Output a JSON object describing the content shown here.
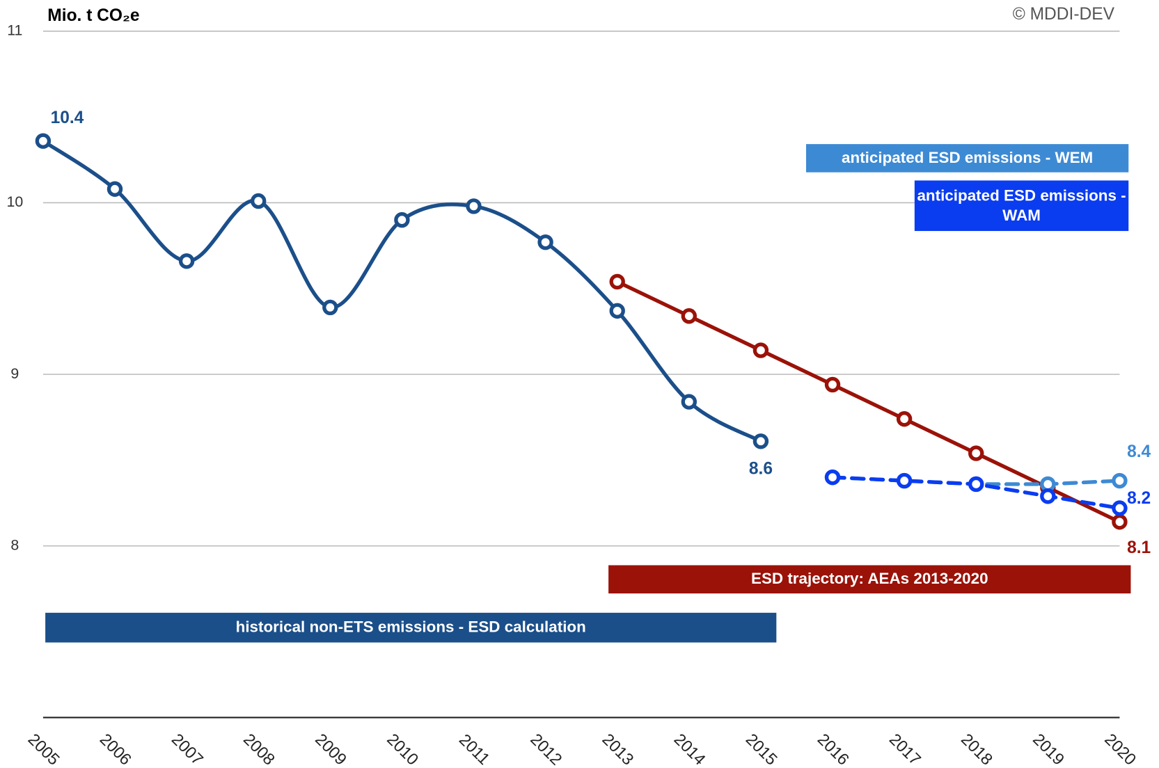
{
  "chart_data": {
    "type": "line",
    "y_label": "Mio. t CO₂e",
    "source": "© MDDI-DEV",
    "categories": [
      "2005",
      "2006",
      "2007",
      "2008",
      "2009",
      "2010",
      "2011",
      "2012",
      "2013",
      "2014",
      "2015",
      "2016",
      "2017",
      "2018",
      "2019",
      "2020"
    ],
    "ylim": [
      7,
      11
    ],
    "yticks": [
      8,
      9,
      10,
      11
    ],
    "grid": true,
    "series": [
      {
        "name": "historical non-ETS emissions - ESD calculation",
        "color": "#1b4f8a",
        "smooth": true,
        "dashed": false,
        "values": [
          10.36,
          10.08,
          9.66,
          10.01,
          9.39,
          9.9,
          9.98,
          9.77,
          9.37,
          8.84,
          8.61,
          null,
          null,
          null,
          null,
          null
        ],
        "value_labels": [
          "10.4",
          null,
          null,
          null,
          null,
          null,
          null,
          null,
          null,
          null,
          "8.6",
          null,
          null,
          null,
          null,
          null
        ]
      },
      {
        "name": "ESD trajectory: AEAs 2013-2020",
        "color": "#9b1208",
        "smooth": false,
        "dashed": false,
        "values": [
          null,
          null,
          null,
          null,
          null,
          null,
          null,
          null,
          9.54,
          9.34,
          9.14,
          8.94,
          8.74,
          8.54,
          8.34,
          8.14
        ],
        "value_labels": [
          null,
          null,
          null,
          null,
          null,
          null,
          null,
          null,
          null,
          null,
          null,
          null,
          null,
          null,
          null,
          "8.1"
        ]
      },
      {
        "name": "anticipated ESD emissions - WEM",
        "color": "#3d8ad4",
        "smooth": false,
        "dashed": true,
        "values": [
          null,
          null,
          null,
          null,
          null,
          null,
          null,
          null,
          null,
          null,
          null,
          8.4,
          8.38,
          8.36,
          8.36,
          8.38
        ],
        "value_labels": [
          null,
          null,
          null,
          null,
          null,
          null,
          null,
          null,
          null,
          null,
          null,
          null,
          null,
          null,
          null,
          "8.4"
        ]
      },
      {
        "name": "anticipated ESD emissions - WAM",
        "color": "#0a3cf0",
        "smooth": false,
        "dashed": true,
        "values": [
          null,
          null,
          null,
          null,
          null,
          null,
          null,
          null,
          null,
          null,
          null,
          8.4,
          8.38,
          8.36,
          8.29,
          8.22
        ],
        "value_labels": [
          null,
          null,
          null,
          null,
          null,
          null,
          null,
          null,
          null,
          null,
          null,
          null,
          null,
          null,
          null,
          "8.2"
        ]
      }
    ]
  }
}
